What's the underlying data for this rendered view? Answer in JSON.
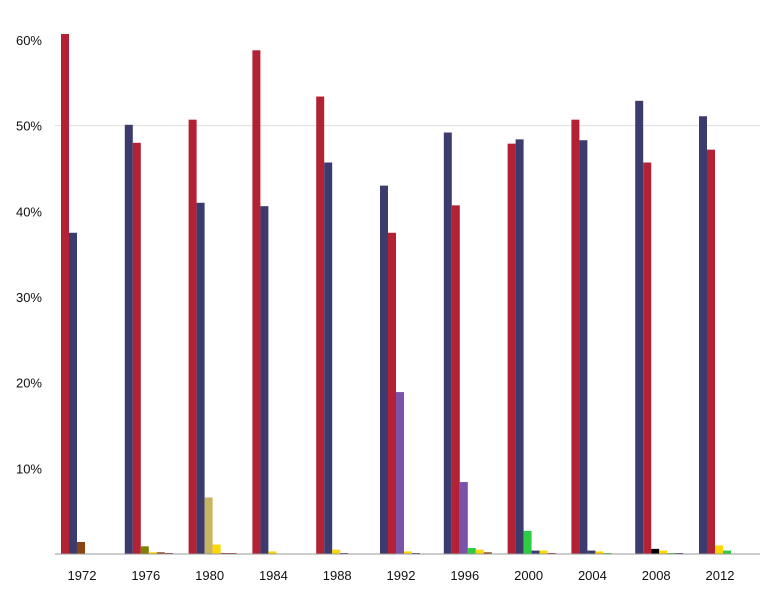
{
  "chart_data": {
    "type": "bar",
    "categories": [
      "1972",
      "1976",
      "1980",
      "1984",
      "1988",
      "1992",
      "1996",
      "2000",
      "2004",
      "2008",
      "2012"
    ],
    "ylim": [
      0,
      60
    ],
    "y_ticks": [
      {
        "value": 10,
        "label": "10%"
      },
      {
        "value": 20,
        "label": "20%"
      },
      {
        "value": 30,
        "label": "30%"
      },
      {
        "value": 40,
        "label": "40%"
      },
      {
        "value": 50,
        "label": "50%"
      },
      {
        "value": 60,
        "label": "60%"
      }
    ],
    "gridlines": [
      50
    ],
    "legend": "none",
    "groups": [
      {
        "bars": [
          {
            "value": 60.7,
            "color": "#b22234"
          },
          {
            "value": 37.5,
            "color": "#3c3b6e"
          },
          {
            "value": 1.4,
            "color": "#8b4513"
          }
        ]
      },
      {
        "bars": [
          {
            "value": 50.1,
            "color": "#3c3b6e"
          },
          {
            "value": 48.0,
            "color": "#b22234"
          },
          {
            "value": 0.9,
            "color": "#808000"
          },
          {
            "value": 0.2,
            "color": "#ffd700"
          },
          {
            "value": 0.2,
            "color": "#8b4513"
          },
          {
            "value": 0.1,
            "color": "#b22234"
          }
        ]
      },
      {
        "bars": [
          {
            "value": 50.7,
            "color": "#b22234"
          },
          {
            "value": 41.0,
            "color": "#3c3b6e"
          },
          {
            "value": 6.6,
            "color": "#c8b560"
          },
          {
            "value": 1.1,
            "color": "#ffd700"
          },
          {
            "value": 0.1,
            "color": "#b22234"
          },
          {
            "value": 0.1,
            "color": "#8b4513"
          }
        ]
      },
      {
        "bars": [
          {
            "value": 58.8,
            "color": "#b22234"
          },
          {
            "value": 40.6,
            "color": "#3c3b6e"
          },
          {
            "value": 0.3,
            "color": "#ffd700"
          }
        ]
      },
      {
        "bars": [
          {
            "value": 53.4,
            "color": "#b22234"
          },
          {
            "value": 45.7,
            "color": "#3c3b6e"
          },
          {
            "value": 0.5,
            "color": "#ffd700"
          },
          {
            "value": 0.1,
            "color": "#3c3b6e"
          }
        ]
      },
      {
        "bars": [
          {
            "value": 43.0,
            "color": "#3c3b6e"
          },
          {
            "value": 37.5,
            "color": "#b22234"
          },
          {
            "value": 18.9,
            "color": "#7b52ab"
          },
          {
            "value": 0.3,
            "color": "#ffd700"
          },
          {
            "value": 0.1,
            "color": "#3c3b6e"
          }
        ]
      },
      {
        "bars": [
          {
            "value": 49.2,
            "color": "#3c3b6e"
          },
          {
            "value": 40.7,
            "color": "#b22234"
          },
          {
            "value": 8.4,
            "color": "#7b52ab"
          },
          {
            "value": 0.7,
            "color": "#2ecc40"
          },
          {
            "value": 0.5,
            "color": "#ffd700"
          },
          {
            "value": 0.2,
            "color": "#8b4513"
          }
        ]
      },
      {
        "bars": [
          {
            "value": 47.9,
            "color": "#b22234"
          },
          {
            "value": 48.4,
            "color": "#3c3b6e"
          },
          {
            "value": 2.7,
            "color": "#2ecc40"
          },
          {
            "value": 0.4,
            "color": "#3c3b6e"
          },
          {
            "value": 0.4,
            "color": "#ffd700"
          },
          {
            "value": 0.1,
            "color": "#b22234"
          }
        ]
      },
      {
        "bars": [
          {
            "value": 50.7,
            "color": "#b22234"
          },
          {
            "value": 48.3,
            "color": "#3c3b6e"
          },
          {
            "value": 0.4,
            "color": "#3c3b6e"
          },
          {
            "value": 0.3,
            "color": "#ffd700"
          },
          {
            "value": 0.1,
            "color": "#2ecc40"
          }
        ]
      },
      {
        "bars": [
          {
            "value": 52.9,
            "color": "#3c3b6e"
          },
          {
            "value": 45.7,
            "color": "#b22234"
          },
          {
            "value": 0.6,
            "color": "#000000"
          },
          {
            "value": 0.4,
            "color": "#ffd700"
          },
          {
            "value": 0.1,
            "color": "#2ecc40"
          },
          {
            "value": 0.1,
            "color": "#3c3b6e"
          }
        ]
      },
      {
        "bars": [
          {
            "value": 51.1,
            "color": "#3c3b6e"
          },
          {
            "value": 47.2,
            "color": "#b22234"
          },
          {
            "value": 1.0,
            "color": "#ffd700"
          },
          {
            "value": 0.4,
            "color": "#2ecc40"
          }
        ]
      }
    ]
  }
}
